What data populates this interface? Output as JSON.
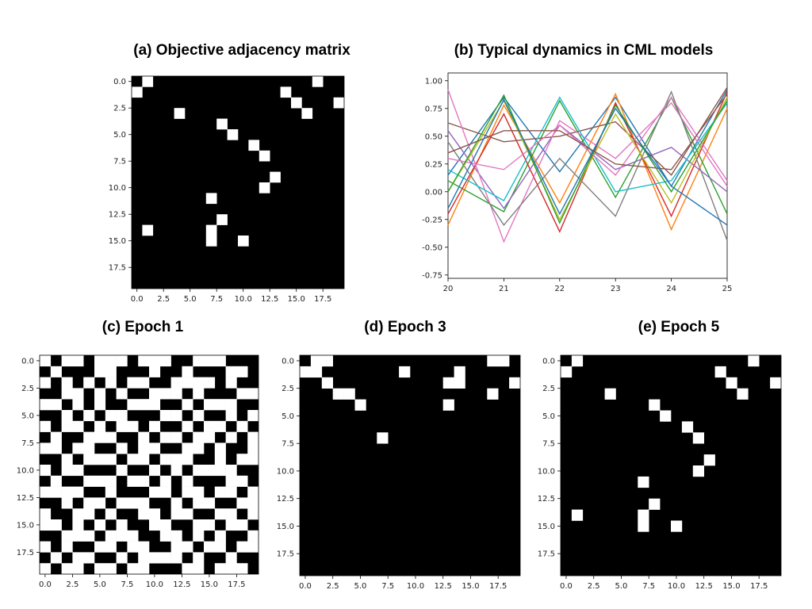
{
  "chart_data": [
    {
      "id": "a",
      "type": "heatmap",
      "title": "(a) Objective adjacency matrix",
      "colormap": {
        "0": "#000000",
        "1": "#ffffff"
      },
      "x_ticks": [
        "0.0",
        "2.5",
        "5.0",
        "7.5",
        "10.0",
        "12.5",
        "15.0",
        "17.5"
      ],
      "y_ticks": [
        "0.0",
        "2.5",
        "5.0",
        "7.5",
        "10.0",
        "12.5",
        "15.0",
        "17.5"
      ],
      "matrix": [
        "01000000000000000100",
        "10000000000000100000",
        "00000000000000010001",
        "00001000000000001000",
        "00000000100000000000",
        "00000000010000000000",
        "00000000000100000000",
        "00000000000010000000",
        "00000000000000000000",
        "00000000000001000000",
        "00000000000010000000",
        "00000001000000000000",
        "00000000000000000000",
        "00000000100000000000",
        "01000001000000000000",
        "00000001001000000000",
        "00000000000000000000",
        "00000000000000000000",
        "00000000000000000000",
        "00000000000000000000"
      ]
    },
    {
      "id": "b",
      "type": "line",
      "title": "(b) Typical dynamics in CML models",
      "xlim": [
        20,
        25
      ],
      "ylim": [
        -0.78,
        1.07
      ],
      "x_ticks": [
        20,
        21,
        22,
        23,
        24,
        25
      ],
      "y_ticks": [
        1.0,
        0.75,
        0.5,
        0.25,
        0.0,
        -0.25,
        -0.5,
        -0.75
      ],
      "x": [
        20,
        21,
        22,
        23,
        24,
        25
      ],
      "series": [
        {
          "color": "#1f77b4",
          "values": [
            0.15,
            0.85,
            0.18,
            0.85,
            0.05,
            0.92
          ]
        },
        {
          "color": "#ff7f0e",
          "values": [
            -0.3,
            0.78,
            -0.1,
            0.88,
            -0.34,
            0.75
          ]
        },
        {
          "color": "#2ca02c",
          "values": [
            0.1,
            -0.18,
            0.82,
            -0.05,
            0.85,
            -0.2
          ]
        },
        {
          "color": "#d62728",
          "values": [
            -0.2,
            0.7,
            -0.36,
            0.8,
            -0.22,
            0.9
          ]
        },
        {
          "color": "#9467bd",
          "values": [
            0.55,
            -0.15,
            0.6,
            0.2,
            0.4,
            0.0
          ]
        },
        {
          "color": "#8c564b",
          "values": [
            0.62,
            0.45,
            0.5,
            0.63,
            0.15,
            0.94
          ]
        },
        {
          "color": "#e377c2",
          "values": [
            0.92,
            -0.45,
            0.64,
            0.3,
            0.8,
            0.05
          ]
        },
        {
          "color": "#7f7f7f",
          "values": [
            0.45,
            -0.3,
            0.3,
            -0.22,
            0.9,
            -0.44
          ]
        },
        {
          "color": "#bcbd22",
          "values": [
            0.0,
            0.82,
            -0.25,
            0.7,
            -0.1,
            0.85
          ]
        },
        {
          "color": "#17becf",
          "values": [
            0.2,
            -0.08,
            0.85,
            0.0,
            0.1,
            0.8
          ]
        },
        {
          "color": "#e377c2",
          "values": [
            0.3,
            0.2,
            0.6,
            0.15,
            0.85,
            0.1
          ]
        },
        {
          "color": "#2ca02c",
          "values": [
            0.0,
            0.87,
            -0.28,
            0.78,
            0.0,
            0.82
          ]
        },
        {
          "color": "#8c564b",
          "values": [
            0.35,
            0.55,
            0.55,
            0.25,
            0.2,
            0.88
          ]
        },
        {
          "color": "#1f77b4",
          "values": [
            -0.15,
            0.83,
            -0.2,
            0.75,
            0.05,
            -0.3
          ]
        }
      ]
    },
    {
      "id": "c",
      "type": "heatmap",
      "title": "(c) Epoch 1",
      "colormap": {
        "0": "#000000",
        "1": "#ffffff"
      },
      "x_ticks": [
        "0.0",
        "2.5",
        "5.0",
        "7.5",
        "10.0",
        "12.5",
        "15.0",
        "17.5"
      ],
      "y_ticks": [
        "0.0",
        "2.5",
        "5.0",
        "7.5",
        "10.0",
        "12.5",
        "15.0",
        "17.5"
      ],
      "matrix": [
        "10110111011100111000",
        "01000110001001000110",
        "10101010110011110100",
        "00110101001110100011",
        "11010100111001011100",
        "00101011000110100101",
        "10110101101001011010",
        "01001110010110110101",
        "11011001011001101001",
        "00101110110111001011",
        "10110001001010111100",
        "01001110110101000110",
        "11110010001101101101",
        "00101101110010110011",
        "10011010011011001101",
        "11010101001100110110",
        "00111011100110101001",
        "10100110110011011011",
        "01011001011110100100",
        "10110110110001101110"
      ]
    },
    {
      "id": "d",
      "type": "heatmap",
      "title": "(d) Epoch 3",
      "colormap": {
        "0": "#000000",
        "1": "#ffffff"
      },
      "x_ticks": [
        "0.0",
        "2.5",
        "5.0",
        "7.5",
        "10.0",
        "12.5",
        "15.0",
        "17.5"
      ],
      "y_ticks": [
        "0.0",
        "2.5",
        "5.0",
        "7.5",
        "10.0",
        "12.5",
        "15.0",
        "17.5"
      ],
      "matrix": [
        "01100000000000000110",
        "11000000010000100000",
        "00100000000001100001",
        "00011000000000000100",
        "00000100000001000000",
        "00000000000000000000",
        "00000000000000000000",
        "00000001000000000000",
        "00000000000000000000",
        "00000000000000000000",
        "00000000000000000000",
        "00000000000000000000",
        "00000000000000000000",
        "00000000000000000000",
        "00000000000000000000",
        "00000000000000000000",
        "00000000000000000000",
        "00000000000000000000",
        "00000000000000000000",
        "00000000000000000000"
      ]
    },
    {
      "id": "e",
      "type": "heatmap",
      "title": "(e) Epoch 5",
      "colormap": {
        "0": "#000000",
        "1": "#ffffff"
      },
      "x_ticks": [
        "0.0",
        "2.5",
        "5.0",
        "7.5",
        "10.0",
        "12.5",
        "15.0",
        "17.5"
      ],
      "y_ticks": [
        "0.0",
        "2.5",
        "5.0",
        "7.5",
        "10.0",
        "12.5",
        "15.0",
        "17.5"
      ],
      "matrix": [
        "01000000000000000100",
        "10000000000000100000",
        "00000000000000010001",
        "00001000000000001000",
        "00000000100000000000",
        "00000000010000000000",
        "00000000000100000000",
        "00000000000010000000",
        "00000000000000000000",
        "00000000000001000000",
        "00000000000010000000",
        "00000001000000000000",
        "00000000000000000000",
        "00000000100000000000",
        "01000001000000000000",
        "00000001001000000000",
        "00000000000000000000",
        "00000000000000000000",
        "00000000000000000000",
        "00000000000000000000"
      ]
    }
  ]
}
